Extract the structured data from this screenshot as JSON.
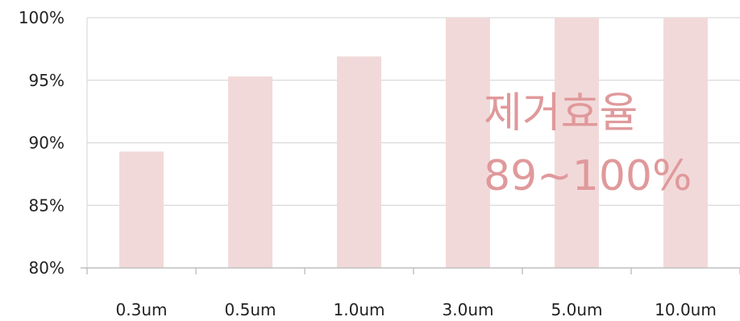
{
  "chart_data": {
    "type": "bar",
    "categories": [
      "0.3um",
      "0.5um",
      "1.0um",
      "3.0um",
      "5.0um",
      "10.0um"
    ],
    "values": [
      89.3,
      95.3,
      96.9,
      100,
      100,
      100
    ],
    "ylim": [
      80,
      100
    ],
    "y_ticks": [
      80,
      85,
      90,
      95,
      100
    ],
    "y_tick_labels": [
      "80%",
      "85%",
      "90%",
      "95%",
      "100%"
    ],
    "grid": true,
    "bar_color": "#f2d9d9",
    "annotation": {
      "lines": [
        "제거효율",
        "89~100%"
      ],
      "color": "#e0999b"
    }
  }
}
